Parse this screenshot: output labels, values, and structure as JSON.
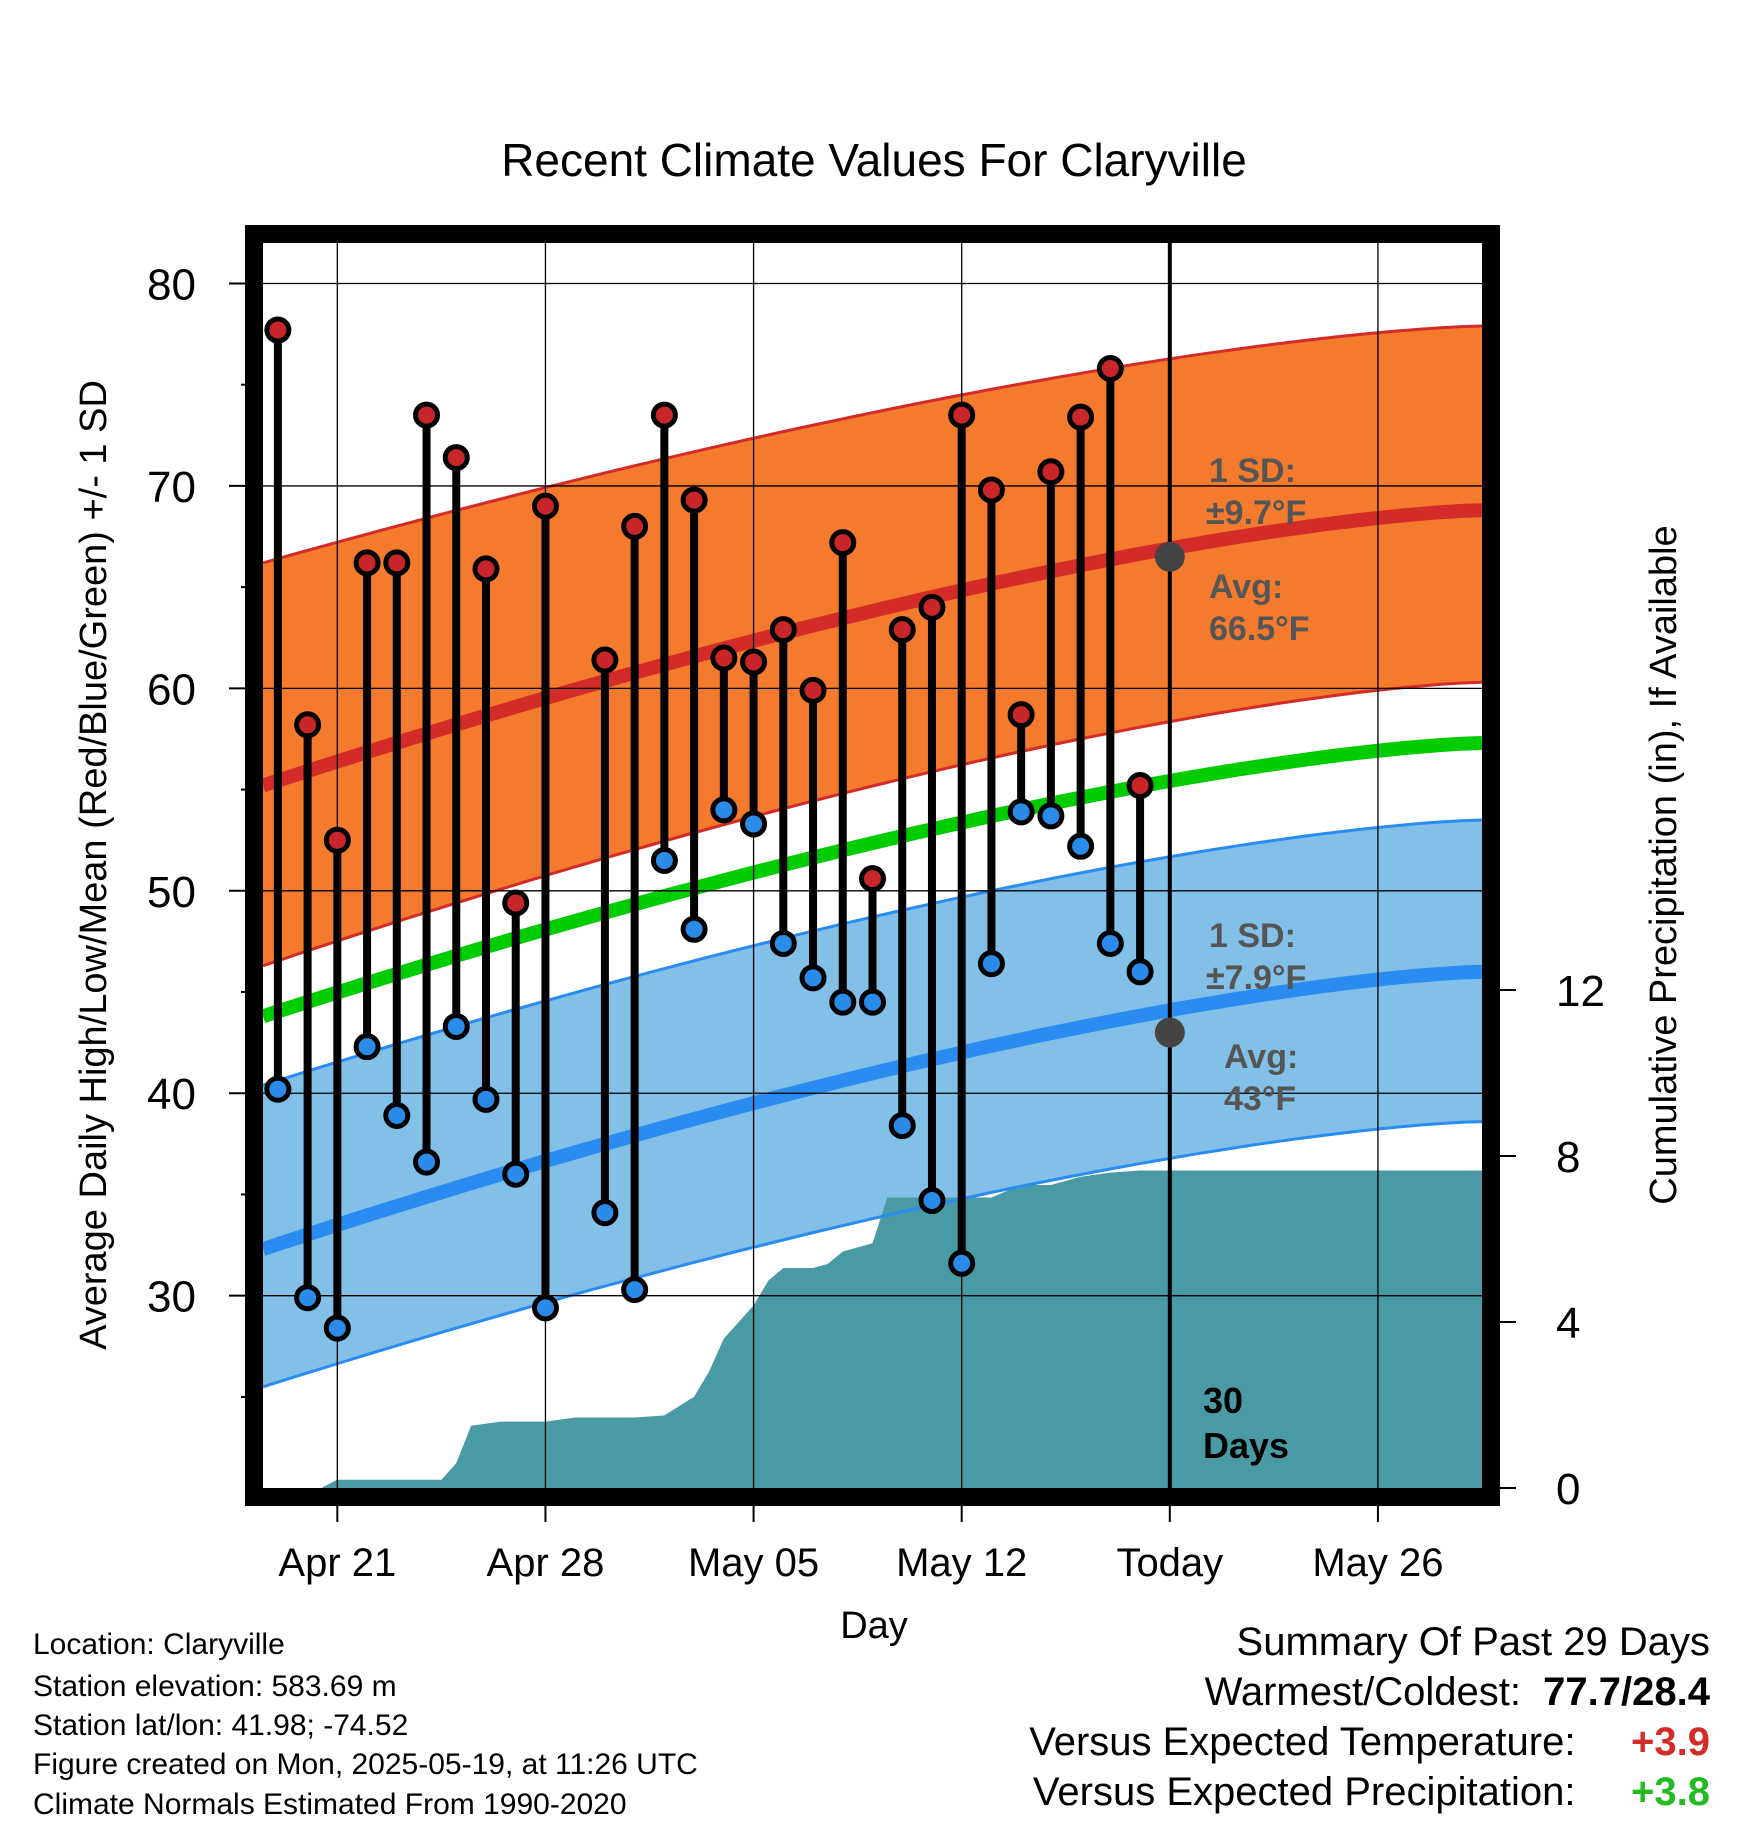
{
  "chart_data": {
    "type": "line",
    "title": "Recent Climate Values For Claryville",
    "xlabel": "Day",
    "ylabel": "Average Daily High/Low/Mean (Red/Blue/Green) +/- 1 SD",
    "y2label": "Cumulative Precipitation (in), If Available",
    "ylim": [
      20.5,
      82
    ],
    "y2lim": [
      0,
      30
    ],
    "yticks": [
      "30",
      "40",
      "50",
      "60",
      "70",
      "80"
    ],
    "y2ticks": [
      "0",
      "4",
      "8",
      "12"
    ],
    "xlim": [
      -0.5,
      40.5
    ],
    "xticks": [
      {
        "day": 2,
        "label": "Apr 21"
      },
      {
        "day": 9,
        "label": "Apr 28"
      },
      {
        "day": 16,
        "label": "May 05"
      },
      {
        "day": 23,
        "label": "May 12"
      },
      {
        "day": 30,
        "label": "Today"
      },
      {
        "day": 37,
        "label": "May 26"
      }
    ],
    "today_marker": {
      "day": 30,
      "label_line1": "30",
      "label_line2": "Days"
    },
    "daily_high": [
      77.7,
      58.2,
      52.5,
      66.2,
      66.2,
      73.5,
      71.4,
      65.9,
      49.4,
      69.0,
      null,
      61.4,
      68.0,
      73.5,
      69.3,
      61.5,
      61.3,
      62.9,
      59.9,
      67.2,
      50.6,
      62.9,
      64.0,
      73.5,
      69.8,
      58.7,
      70.7,
      73.4,
      75.8,
      55.2
    ],
    "daily_low": [
      40.2,
      29.9,
      28.4,
      42.3,
      38.9,
      36.6,
      43.3,
      39.7,
      36.0,
      29.4,
      null,
      34.1,
      30.3,
      51.5,
      48.1,
      54.0,
      53.3,
      47.4,
      45.7,
      44.5,
      44.5,
      38.4,
      34.7,
      31.6,
      46.4,
      53.9,
      53.7,
      52.2,
      47.4,
      46.0
    ],
    "normal_high": {
      "start": 55.2,
      "end": 68.8
    },
    "normal_high_upper": {
      "start": 66.2,
      "end": 77.9
    },
    "normal_high_lower": {
      "start": 46.3,
      "end": 60.3
    },
    "normal_mean": {
      "start": 43.8,
      "end": 57.3
    },
    "normal_low": {
      "start": 32.3,
      "end": 46.0
    },
    "normal_low_upper": {
      "start": 40.4,
      "end": 53.5
    },
    "normal_low_lower": {
      "start": 25.5,
      "end": 38.6
    },
    "precip_cumulative": {
      "days": [
        1.5,
        2,
        5.5,
        6,
        6.5,
        7.5,
        9,
        10,
        12,
        13,
        14,
        14.5,
        15,
        15.5,
        16,
        16.5,
        17,
        18,
        18.5,
        19,
        20,
        20.5,
        21,
        22,
        22.5,
        23,
        24,
        25,
        26,
        27,
        28,
        29,
        40.5
      ],
      "values": [
        0.02,
        0.2,
        0.2,
        0.6,
        1.5,
        1.6,
        1.6,
        1.7,
        1.7,
        1.75,
        2.2,
        2.8,
        3.6,
        4.0,
        4.4,
        5.0,
        5.3,
        5.3,
        5.4,
        5.7,
        5.9,
        7.0,
        7.0,
        7.0,
        7.0,
        7.0,
        7.0,
        7.3,
        7.3,
        7.5,
        7.6,
        7.65,
        7.65
      ]
    },
    "sd_high_label": {
      "line1": "1 SD:",
      "line2": "±9.7°F"
    },
    "avg_high_label": {
      "line1": "Avg:",
      "line2": "66.5°F",
      "value": 66.5
    },
    "sd_low_label": {
      "line1": "1 SD:",
      "line2": "±7.9°F"
    },
    "avg_low_label": {
      "line1": "Avg:",
      "line2": "43°F",
      "value": 43
    },
    "colors": {
      "high_band": "#f47a2e",
      "high_line": "#d32b27",
      "mean_line": "#00cc00",
      "low_band": "#82c0e8",
      "low_line": "#2a8cf0",
      "precip": "#4a9aa5",
      "high_marker": "#c8262a",
      "low_marker": "#2a8ce8",
      "avg_marker": "#444444",
      "annotation_text": "#555555"
    }
  },
  "footer": {
    "location": "Location: Claryville",
    "elevation": "Station elevation: 583.69 m",
    "latlon": "Station lat/lon: 41.98; -74.52",
    "created": "Figure created on Mon, 2025-05-19, at 11:26 UTC",
    "normals": "Climate Normals Estimated From 1990-2020"
  },
  "summary": {
    "title": "Summary Of Past 29 Days",
    "warm_cold_label": "Warmest/Coldest:",
    "warm_cold_value": "77.7/28.4",
    "temp_label": "Versus Expected Temperature:",
    "temp_value": "+3.9",
    "temp_color": "#d32b27",
    "precip_label": "Versus Expected Precipitation:",
    "precip_value": "+3.8",
    "precip_color": "#22bb22"
  }
}
